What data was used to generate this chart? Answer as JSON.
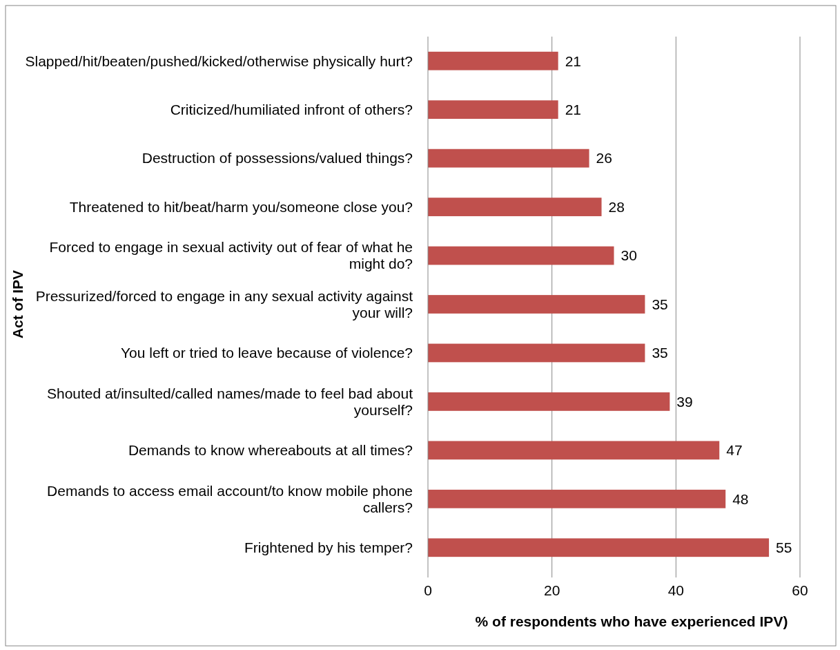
{
  "chart_data": {
    "type": "bar",
    "orientation": "horizontal",
    "xlabel": "% of respondents who have experienced IPV)",
    "ylabel": "Act of IPV",
    "categories": [
      "Slapped/hit/beaten/pushed/kicked/otherwise physically hurt?",
      "Criticized/humiliated infront of others?",
      "Destruction of possessions/valued things?",
      "Threatened to hit/beat/harm you/someone close you?",
      "Forced to engage in sexual activity out of fear of what he might do?",
      "Pressurized/forced to engage in any sexual activity against your will?",
      "You left or tried to leave because of violence?",
      "Shouted at/insulted/called names/made to feel bad about yourself?",
      "Demands to know whereabouts at all times?",
      "Demands to access email account/to know mobile phone callers?",
      "Frightened by his temper?"
    ],
    "values": [
      21,
      21,
      26,
      28,
      30,
      35,
      35,
      39,
      47,
      48,
      55
    ],
    "color": "#c0504d",
    "data_labels": true,
    "xlim": [
      0,
      60
    ],
    "xticks": [
      0,
      20,
      40,
      60
    ],
    "grid": "x"
  }
}
